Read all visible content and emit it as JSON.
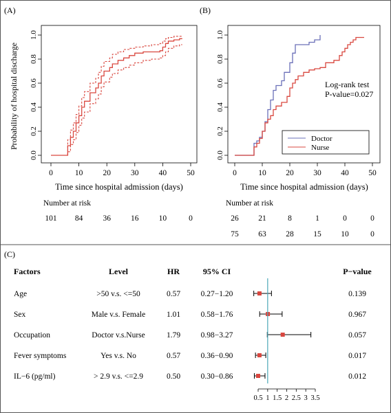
{
  "chart_data": [
    {
      "panel": "(A)",
      "type": "line",
      "ylabel": "Probability of hospital discharge",
      "xlabel": "Time since hospital admission (days)",
      "xlim": [
        0,
        50
      ],
      "ylim": [
        0,
        1
      ],
      "x_ticks": [
        0,
        10,
        20,
        30,
        40,
        50
      ],
      "y_ticks": [
        "0.0",
        "0.2",
        "0.4",
        "0.6",
        "0.8",
        "1.0"
      ],
      "series": [
        {
          "role": "estimate",
          "color": "#d9473f",
          "points": [
            [
              0,
              0
            ],
            [
              5,
              0
            ],
            [
              6,
              0.08
            ],
            [
              7,
              0.15
            ],
            [
              8,
              0.2
            ],
            [
              9,
              0.27
            ],
            [
              10,
              0.33
            ],
            [
              11,
              0.4
            ],
            [
              12,
              0.45
            ],
            [
              14,
              0.52
            ],
            [
              16,
              0.56
            ],
            [
              17,
              0.6
            ],
            [
              18,
              0.66
            ],
            [
              19,
              0.7
            ],
            [
              21,
              0.73
            ],
            [
              22,
              0.76
            ],
            [
              24,
              0.79
            ],
            [
              26,
              0.81
            ],
            [
              28,
              0.83
            ],
            [
              30,
              0.85
            ],
            [
              33,
              0.86
            ],
            [
              36,
              0.86
            ],
            [
              39,
              0.87
            ],
            [
              40,
              0.9
            ],
            [
              41,
              0.93
            ],
            [
              42,
              0.95
            ],
            [
              44,
              0.96
            ],
            [
              46,
              0.97
            ],
            [
              47,
              0.97
            ]
          ]
        },
        {
          "role": "ci-upper",
          "color": "#d9473f",
          "points": [
            [
              0,
              0
            ],
            [
              5,
              0
            ],
            [
              6,
              0.13
            ],
            [
              7,
              0.21
            ],
            [
              8,
              0.27
            ],
            [
              9,
              0.34
            ],
            [
              10,
              0.41
            ],
            [
              11,
              0.48
            ],
            [
              12,
              0.53
            ],
            [
              14,
              0.6
            ],
            [
              16,
              0.64
            ],
            [
              17,
              0.69
            ],
            [
              18,
              0.74
            ],
            [
              19,
              0.78
            ],
            [
              21,
              0.81
            ],
            [
              22,
              0.84
            ],
            [
              24,
              0.86
            ],
            [
              26,
              0.88
            ],
            [
              28,
              0.89
            ],
            [
              30,
              0.9
            ],
            [
              33,
              0.91
            ],
            [
              36,
              0.92
            ],
            [
              39,
              0.93
            ],
            [
              40,
              0.95
            ],
            [
              41,
              0.97
            ],
            [
              42,
              0.98
            ],
            [
              44,
              0.99
            ],
            [
              46,
              0.99
            ],
            [
              47,
              0.99
            ]
          ]
        },
        {
          "role": "ci-lower",
          "color": "#d9473f",
          "points": [
            [
              0,
              0
            ],
            [
              5,
              0
            ],
            [
              6,
              0.03
            ],
            [
              7,
              0.09
            ],
            [
              8,
              0.13
            ],
            [
              9,
              0.19
            ],
            [
              10,
              0.25
            ],
            [
              11,
              0.31
            ],
            [
              12,
              0.36
            ],
            [
              14,
              0.43
            ],
            [
              16,
              0.47
            ],
            [
              17,
              0.51
            ],
            [
              18,
              0.57
            ],
            [
              19,
              0.61
            ],
            [
              21,
              0.65
            ],
            [
              22,
              0.68
            ],
            [
              24,
              0.71
            ],
            [
              26,
              0.73
            ],
            [
              28,
              0.75
            ],
            [
              30,
              0.77
            ],
            [
              33,
              0.79
            ],
            [
              36,
              0.8
            ],
            [
              39,
              0.81
            ],
            [
              40,
              0.83
            ],
            [
              41,
              0.86
            ],
            [
              42,
              0.89
            ],
            [
              44,
              0.91
            ],
            [
              46,
              0.92
            ],
            [
              47,
              0.92
            ]
          ]
        }
      ],
      "risk_table": {
        "title": "Number at risk",
        "rows": [
          [
            101,
            84,
            36,
            16,
            10,
            0
          ]
        ]
      }
    },
    {
      "panel": "(B)",
      "type": "line",
      "xlabel": "Time since hospital admission (days)",
      "xlim": [
        0,
        50
      ],
      "ylim": [
        0,
        1
      ],
      "x_ticks": [
        0,
        10,
        20,
        30,
        40,
        50
      ],
      "y_ticks": [
        "0.0",
        "0.2",
        "0.4",
        "0.6",
        "0.8",
        "1.0"
      ],
      "annotation": [
        "Log-rank test",
        "P-value=0.027"
      ],
      "series": [
        {
          "name": "Doctor",
          "color": "#6a6fb8",
          "points": [
            [
              0,
              0
            ],
            [
              6,
              0
            ],
            [
              7,
              0.1
            ],
            [
              8,
              0.12
            ],
            [
              9,
              0.15
            ],
            [
              10,
              0.2
            ],
            [
              11,
              0.28
            ],
            [
              12,
              0.38
            ],
            [
              13,
              0.46
            ],
            [
              14,
              0.54
            ],
            [
              15,
              0.58
            ],
            [
              17,
              0.62
            ],
            [
              18,
              0.69
            ],
            [
              20,
              0.77
            ],
            [
              21,
              0.85
            ],
            [
              22,
              0.92
            ],
            [
              26,
              0.92
            ],
            [
              27,
              0.94
            ],
            [
              29,
              0.96
            ],
            [
              31,
              1.0
            ]
          ]
        },
        {
          "name": "Nurse",
          "color": "#d9473f",
          "points": [
            [
              0,
              0
            ],
            [
              6,
              0
            ],
            [
              7,
              0.07
            ],
            [
              8,
              0.1
            ],
            [
              9,
              0.14
            ],
            [
              10,
              0.2
            ],
            [
              11,
              0.27
            ],
            [
              12,
              0.3
            ],
            [
              13,
              0.33
            ],
            [
              14,
              0.38
            ],
            [
              15,
              0.41
            ],
            [
              17,
              0.44
            ],
            [
              19,
              0.49
            ],
            [
              20,
              0.56
            ],
            [
              21,
              0.6
            ],
            [
              22,
              0.63
            ],
            [
              23,
              0.66
            ],
            [
              25,
              0.69
            ],
            [
              27,
              0.71
            ],
            [
              29,
              0.72
            ],
            [
              31,
              0.73
            ],
            [
              33,
              0.77
            ],
            [
              36,
              0.79
            ],
            [
              38,
              0.83
            ],
            [
              39,
              0.86
            ],
            [
              40,
              0.89
            ],
            [
              41,
              0.92
            ],
            [
              42,
              0.94
            ],
            [
              43,
              0.96
            ],
            [
              44,
              0.98
            ],
            [
              47,
              0.98
            ]
          ]
        }
      ],
      "legend": {
        "placement": "bottom-right"
      },
      "risk_table": {
        "title": "Number at risk",
        "rows": [
          [
            26,
            21,
            8,
            1,
            0,
            0
          ],
          [
            75,
            63,
            28,
            15,
            10,
            0
          ]
        ]
      }
    },
    {
      "panel": "(C)",
      "type": "forest",
      "columns": [
        "Factors",
        "Level",
        "HR",
        "95% CI",
        "P−value"
      ],
      "reference_line": 1,
      "reference_color": "#4aa7b8",
      "xlim": [
        0.5,
        3.5
      ],
      "x_ticks": [
        "0.5",
        "1",
        "1.5",
        "2",
        "2.5",
        "3",
        "3.5"
      ],
      "rows": [
        {
          "factor": "Age",
          "level": ">50 v.s. <=50",
          "hr": 0.57,
          "hr_text": "0.57",
          "ci_low": 0.27,
          "ci_high": 1.2,
          "ci_text": "0.27−1.20",
          "p": "0.139"
        },
        {
          "factor": "Sex",
          "level": "Male v.s. Female",
          "hr": 1.01,
          "hr_text": "1.01",
          "ci_low": 0.58,
          "ci_high": 1.76,
          "ci_text": "0.58−1.76",
          "p": "0.967"
        },
        {
          "factor": "Occupation",
          "level": "Doctor v.s.Nurse",
          "hr": 1.79,
          "hr_text": "1.79",
          "ci_low": 0.98,
          "ci_high": 3.27,
          "ci_text": "0.98−3.27",
          "p": "0.057"
        },
        {
          "factor": "Fever symptoms",
          "level": "Yes v.s. No",
          "hr": 0.57,
          "hr_text": "0.57",
          "ci_low": 0.36,
          "ci_high": 0.9,
          "ci_text": "0.36−0.90",
          "p": "0.017"
        },
        {
          "factor": "IL−6 (pg/ml)",
          "level": "> 2.9 v.s. <=2.9",
          "hr": 0.5,
          "hr_text": "0.50",
          "ci_low": 0.3,
          "ci_high": 0.86,
          "ci_text": "0.30−0.86",
          "p": "0.012"
        }
      ],
      "marker_color": "#d9473f"
    }
  ]
}
